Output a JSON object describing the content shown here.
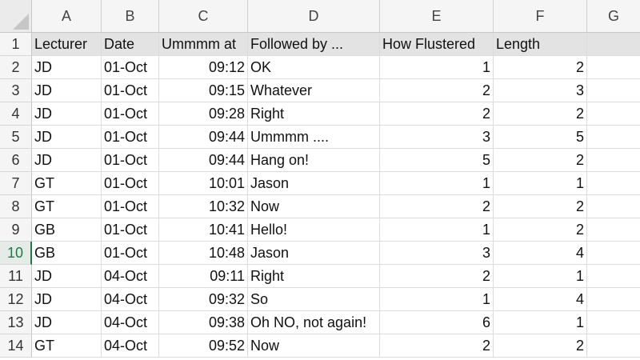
{
  "columns": [
    "A",
    "B",
    "C",
    "D",
    "E",
    "F",
    "G"
  ],
  "header": {
    "row_number": "1",
    "cells": [
      "Lecturer",
      "Date",
      "Ummmm at",
      "Followed by ...",
      "How Flustered",
      "Length",
      ""
    ]
  },
  "rows": [
    {
      "n": "2",
      "lecturer": "JD",
      "date": "01-Oct",
      "time": "09:12",
      "followed": "OK",
      "flustered": "1",
      "length": "2"
    },
    {
      "n": "3",
      "lecturer": "JD",
      "date": "01-Oct",
      "time": "09:15",
      "followed": "Whatever",
      "flustered": "2",
      "length": "3"
    },
    {
      "n": "4",
      "lecturer": "JD",
      "date": "01-Oct",
      "time": "09:28",
      "followed": "Right",
      "flustered": "2",
      "length": "2"
    },
    {
      "n": "5",
      "lecturer": "JD",
      "date": "01-Oct",
      "time": "09:44",
      "followed": "Ummmm ....",
      "flustered": "3",
      "length": "5"
    },
    {
      "n": "6",
      "lecturer": "JD",
      "date": "01-Oct",
      "time": "09:44",
      "followed": "Hang on!",
      "flustered": "5",
      "length": "2"
    },
    {
      "n": "7",
      "lecturer": "GT",
      "date": "01-Oct",
      "time": "10:01",
      "followed": "Jason",
      "flustered": "1",
      "length": "1"
    },
    {
      "n": "8",
      "lecturer": "GT",
      "date": "01-Oct",
      "time": "10:32",
      "followed": "Now",
      "flustered": "2",
      "length": "2"
    },
    {
      "n": "9",
      "lecturer": "GB",
      "date": "01-Oct",
      "time": "10:41",
      "followed": "Hello!",
      "flustered": "1",
      "length": "2"
    },
    {
      "n": "10",
      "lecturer": "GB",
      "date": "01-Oct",
      "time": "10:48",
      "followed": "Jason",
      "flustered": "3",
      "length": "4"
    },
    {
      "n": "11",
      "lecturer": "JD",
      "date": "04-Oct",
      "time": "09:11",
      "followed": "Right",
      "flustered": "2",
      "length": "1"
    },
    {
      "n": "12",
      "lecturer": "JD",
      "date": "04-Oct",
      "time": "09:32",
      "followed": "So",
      "flustered": "1",
      "length": "4"
    },
    {
      "n": "13",
      "lecturer": "JD",
      "date": "04-Oct",
      "time": "09:38",
      "followed": "Oh NO, not again!",
      "flustered": "6",
      "length": "1"
    },
    {
      "n": "14",
      "lecturer": "GT",
      "date": "04-Oct",
      "time": "09:52",
      "followed": "Now",
      "flustered": "2",
      "length": "2"
    }
  ],
  "active_row": "10",
  "colors": {
    "active_accent": "#1f7a45",
    "header_row_fill": "#e3e3e3"
  }
}
